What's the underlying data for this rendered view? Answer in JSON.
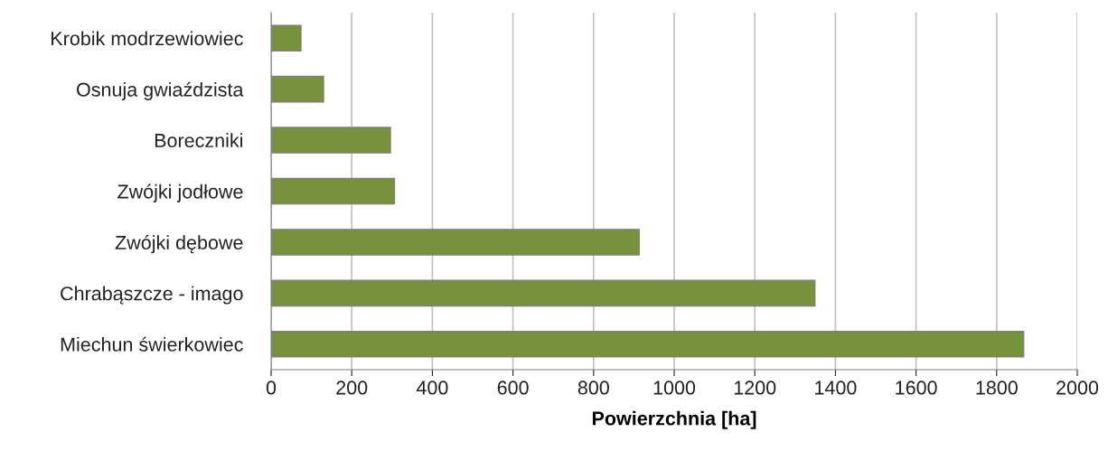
{
  "chart_data": {
    "type": "bar",
    "orientation": "horizontal",
    "xlabel": "Powierzchnia [ha]",
    "categories": [
      "Krobik modrzewiowiec",
      "Osnuja gwiaździsta",
      "Boreczniki",
      "Zwójki jodłowe",
      "Zwójki dębowe",
      "Chrabąszcze - imago",
      "Miechun świerkowiec"
    ],
    "values": [
      74,
      130,
      296,
      306,
      913,
      1349,
      1867
    ],
    "color": "#76923c",
    "xlim": [
      0,
      2000
    ],
    "xticks": [
      0,
      200,
      400,
      600,
      800,
      1000,
      1200,
      1400,
      1600,
      1800,
      2000
    ],
    "grid": "x"
  }
}
